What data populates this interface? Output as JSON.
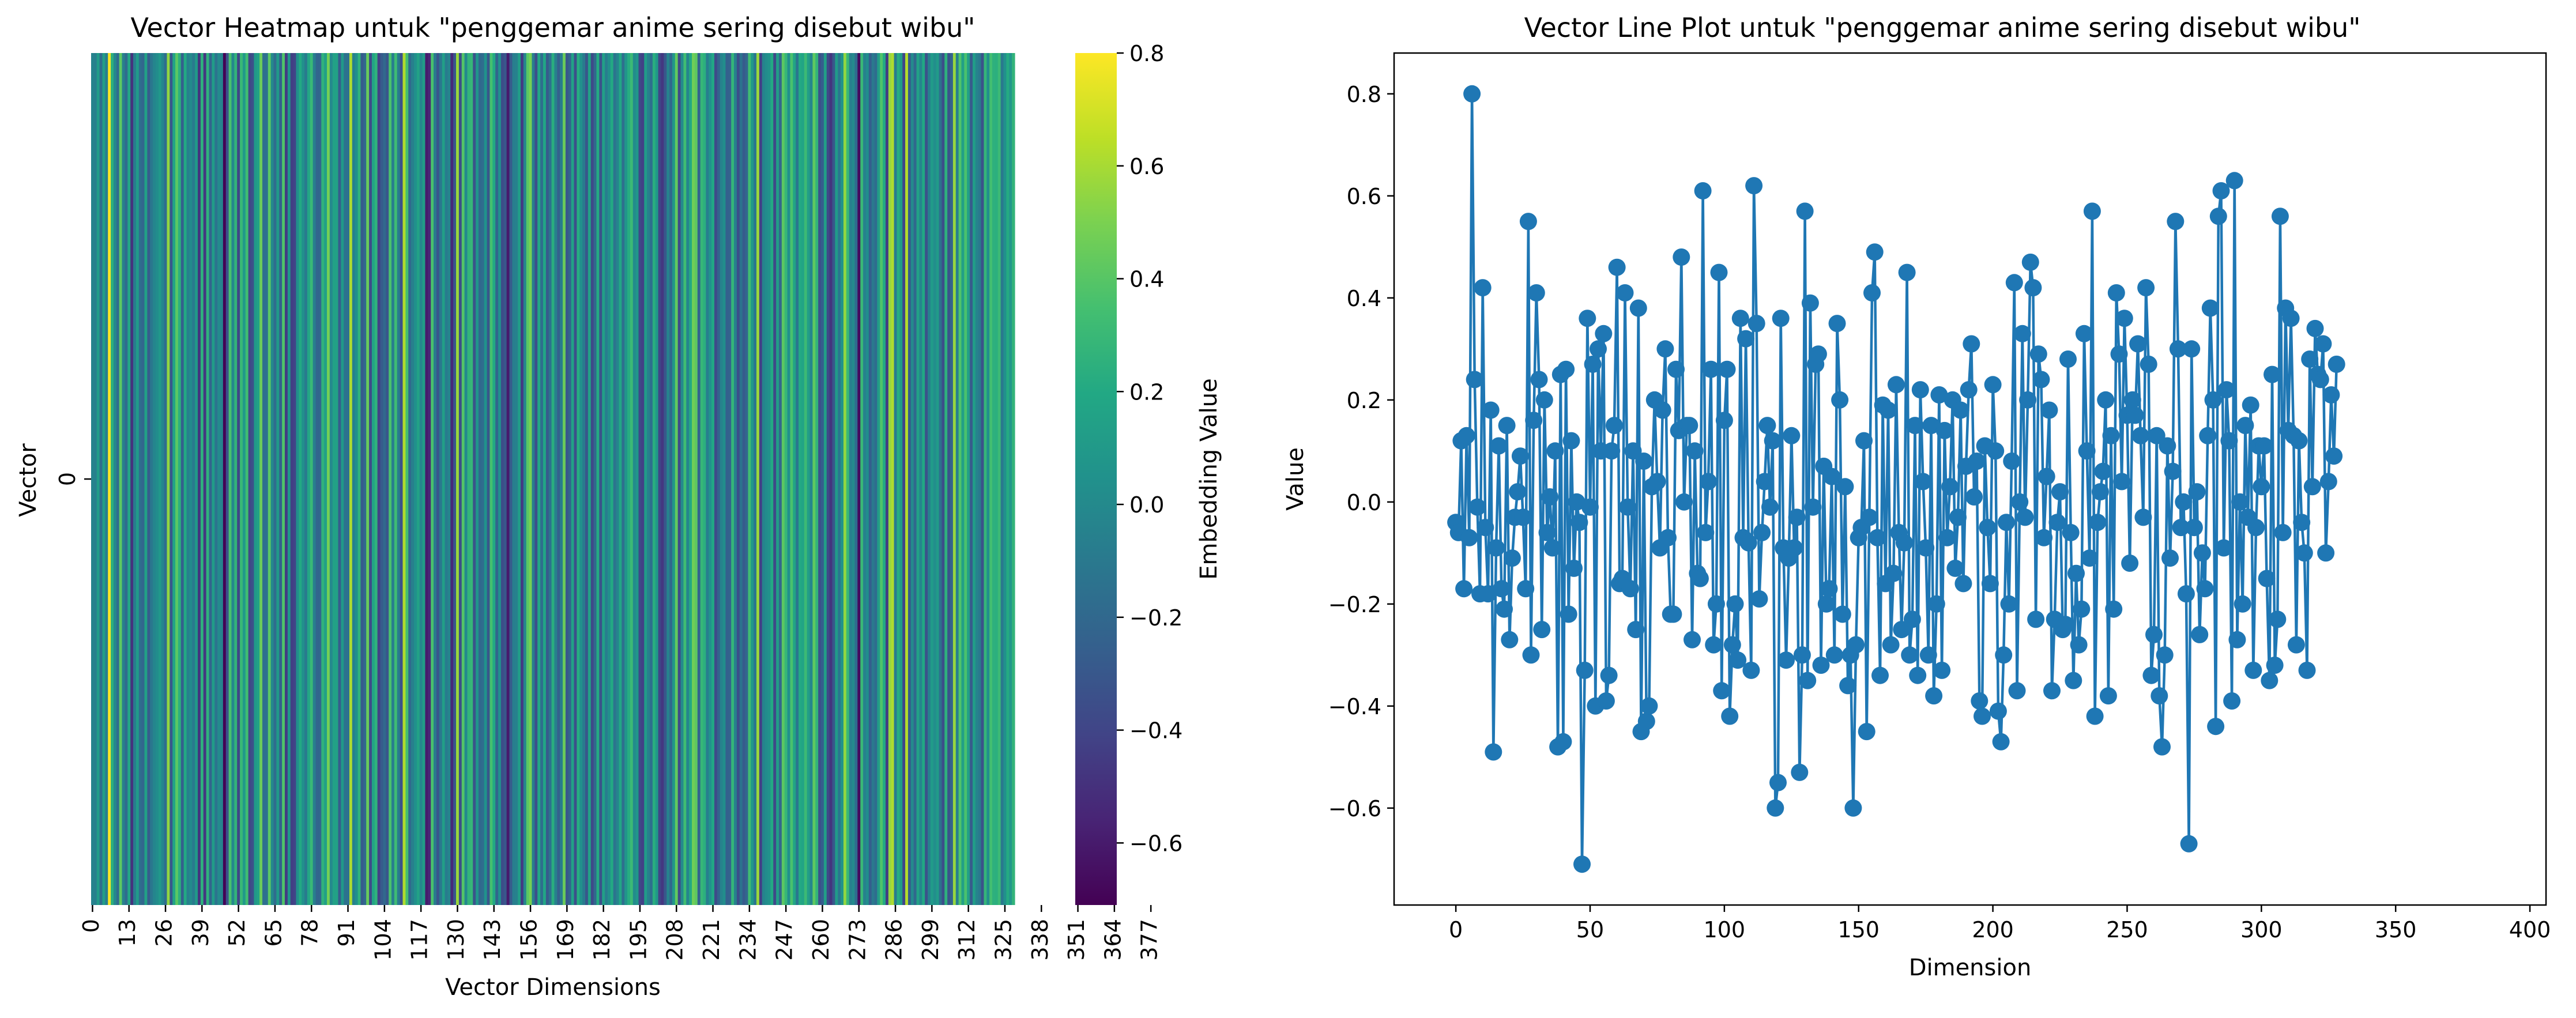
{
  "chart_data": [
    {
      "type": "heatmap",
      "title": "Vector Heatmap untuk \"penggemar anime sering disebut wibu\"",
      "xlabel": "Vector Dimensions",
      "ylabel": "Vector",
      "row_labels": [
        "0"
      ],
      "x_tick_labels": [
        "0",
        "13",
        "26",
        "39",
        "52",
        "65",
        "78",
        "91",
        "104",
        "117",
        "130",
        "143",
        "156",
        "169",
        "182",
        "195",
        "208",
        "221",
        "234",
        "247",
        "260",
        "273",
        "286",
        "299",
        "312",
        "325",
        "338",
        "351",
        "364",
        "377"
      ],
      "colorbar": {
        "label": "Embedding Value",
        "colormap": "viridis",
        "vmin": -0.71,
        "vmax": 0.8,
        "ticks": [
          -0.6,
          -0.4,
          -0.2,
          0.0,
          0.2,
          0.4,
          0.6,
          0.8
        ],
        "tick_labels": [
          "−0.6",
          "−0.4",
          "−0.2",
          "0.0",
          "0.2",
          "0.4",
          "0.6",
          "0.8"
        ]
      },
      "values_ref": "shared embedding vector (same values as line plot)"
    },
    {
      "type": "line",
      "title": "Vector Line Plot untuk \"penggemar anime sering disebut wibu\"",
      "xlabel": "Dimension",
      "ylabel": "Value",
      "xlim": [
        -23,
        406
      ],
      "ylim": [
        -0.79,
        0.88
      ],
      "x_ticks": [
        0,
        50,
        100,
        150,
        200,
        250,
        300,
        350,
        400
      ],
      "y_ticks": [
        -0.6,
        -0.4,
        -0.2,
        0.0,
        0.2,
        0.4,
        0.6,
        0.8
      ],
      "y_tick_labels": [
        "−0.6",
        "−0.4",
        "−0.2",
        "0.0",
        "0.2",
        "0.4",
        "0.6",
        "0.8"
      ],
      "grid": false,
      "marker": "circle",
      "color": "#1f77b4",
      "values": [
        -0.04,
        -0.06,
        0.12,
        -0.17,
        0.13,
        -0.07,
        0.8,
        0.24,
        -0.01,
        -0.18,
        0.42,
        -0.05,
        -0.18,
        0.18,
        -0.49,
        -0.09,
        0.11,
        -0.17,
        -0.21,
        0.15,
        -0.27,
        -0.11,
        -0.03,
        0.02,
        0.09,
        -0.03,
        -0.17,
        0.55,
        -0.3,
        0.16,
        0.41,
        0.24,
        -0.25,
        0.2,
        -0.06,
        0.01,
        -0.09,
        0.1,
        -0.48,
        0.25,
        -0.47,
        0.26,
        -0.22,
        0.12,
        -0.13,
        0.0,
        -0.04,
        -0.71,
        -0.33,
        0.36,
        -0.01,
        0.27,
        -0.4,
        0.3,
        0.1,
        0.33,
        -0.39,
        -0.34,
        0.1,
        0.15,
        0.46,
        -0.16,
        -0.15,
        0.41,
        -0.01,
        -0.17,
        0.1,
        -0.25,
        0.38,
        -0.45,
        0.08,
        -0.43,
        -0.4,
        0.03,
        0.2,
        0.04,
        -0.09,
        0.18,
        0.3,
        -0.07,
        -0.22,
        -0.22,
        0.26,
        0.14,
        0.48,
        0.0,
        0.15,
        0.15,
        -0.27,
        0.1,
        -0.14,
        -0.15,
        0.61,
        -0.06,
        0.04,
        0.26,
        -0.28,
        -0.2,
        0.45,
        -0.37,
        0.16,
        0.26,
        -0.42,
        -0.28,
        -0.2,
        -0.31,
        0.36,
        -0.07,
        0.32,
        -0.08,
        -0.33,
        0.62,
        0.35,
        -0.19,
        -0.06,
        0.04,
        0.15,
        -0.01,
        0.12,
        -0.6,
        -0.55,
        0.36,
        -0.09,
        -0.31,
        -0.11,
        0.13,
        -0.09,
        -0.03,
        -0.53,
        -0.3,
        0.57,
        -0.35,
        0.39,
        -0.01,
        0.27,
        0.29,
        -0.32,
        0.07,
        -0.2,
        -0.17,
        0.05,
        -0.3,
        0.35,
        0.2,
        -0.22,
        0.03,
        -0.36,
        -0.3,
        -0.6,
        -0.28,
        -0.07,
        -0.05,
        0.12,
        -0.45,
        -0.03,
        0.41,
        0.49,
        -0.07,
        -0.34,
        0.19,
        -0.16,
        0.18,
        -0.28,
        -0.14,
        0.23,
        -0.06,
        -0.25,
        -0.08,
        0.45,
        -0.3,
        -0.23,
        0.15,
        -0.34,
        0.22,
        0.04,
        -0.09,
        -0.3,
        0.15,
        -0.38,
        -0.2,
        0.21,
        -0.33,
        0.14,
        -0.07,
        0.03,
        0.2,
        -0.13,
        -0.03,
        0.18,
        -0.16,
        0.07,
        0.22,
        0.31,
        0.01,
        0.08,
        -0.39,
        -0.42,
        0.11,
        -0.05,
        -0.16,
        0.23,
        0.1,
        -0.41,
        -0.47,
        -0.3,
        -0.04,
        -0.2,
        0.08,
        0.43,
        -0.37,
        0.0,
        0.33,
        -0.03,
        0.2,
        0.47,
        0.42,
        -0.23,
        0.29,
        0.24,
        -0.07,
        0.05,
        0.18,
        -0.37,
        -0.23,
        -0.04,
        0.02,
        -0.25,
        -0.24,
        0.28,
        -0.06,
        -0.35,
        -0.14,
        -0.28,
        -0.21,
        0.33,
        0.1,
        -0.11,
        0.57,
        -0.42,
        -0.04,
        0.02,
        0.06,
        0.2,
        -0.38,
        0.13,
        -0.21,
        0.41,
        0.29,
        0.04,
        0.36,
        0.17,
        -0.12,
        0.2,
        0.17,
        0.31,
        0.13,
        -0.03,
        0.42,
        0.27,
        -0.34,
        -0.26,
        0.13,
        -0.38,
        -0.48,
        -0.3,
        0.11,
        -0.11,
        0.06,
        0.55,
        0.3,
        -0.05,
        0.0,
        -0.18,
        -0.67,
        0.3,
        -0.05,
        0.02,
        -0.26,
        -0.1,
        -0.17,
        0.13,
        0.38,
        0.2,
        -0.44,
        0.56,
        0.61,
        -0.09,
        0.22,
        0.12,
        -0.39,
        0.63,
        -0.27,
        0.0,
        -0.2,
        0.15,
        -0.03,
        0.19,
        -0.33,
        -0.05,
        0.11,
        0.03,
        0.11,
        -0.15,
        -0.35,
        0.25,
        -0.32,
        -0.23,
        0.56,
        -0.06,
        0.38,
        0.14,
        0.36,
        0.13,
        -0.28,
        0.12,
        -0.04,
        -0.1,
        -0.33,
        0.28,
        0.03,
        0.34,
        0.25,
        0.24,
        0.31,
        -0.1,
        0.04,
        0.21,
        0.09,
        0.27
      ]
    }
  ]
}
